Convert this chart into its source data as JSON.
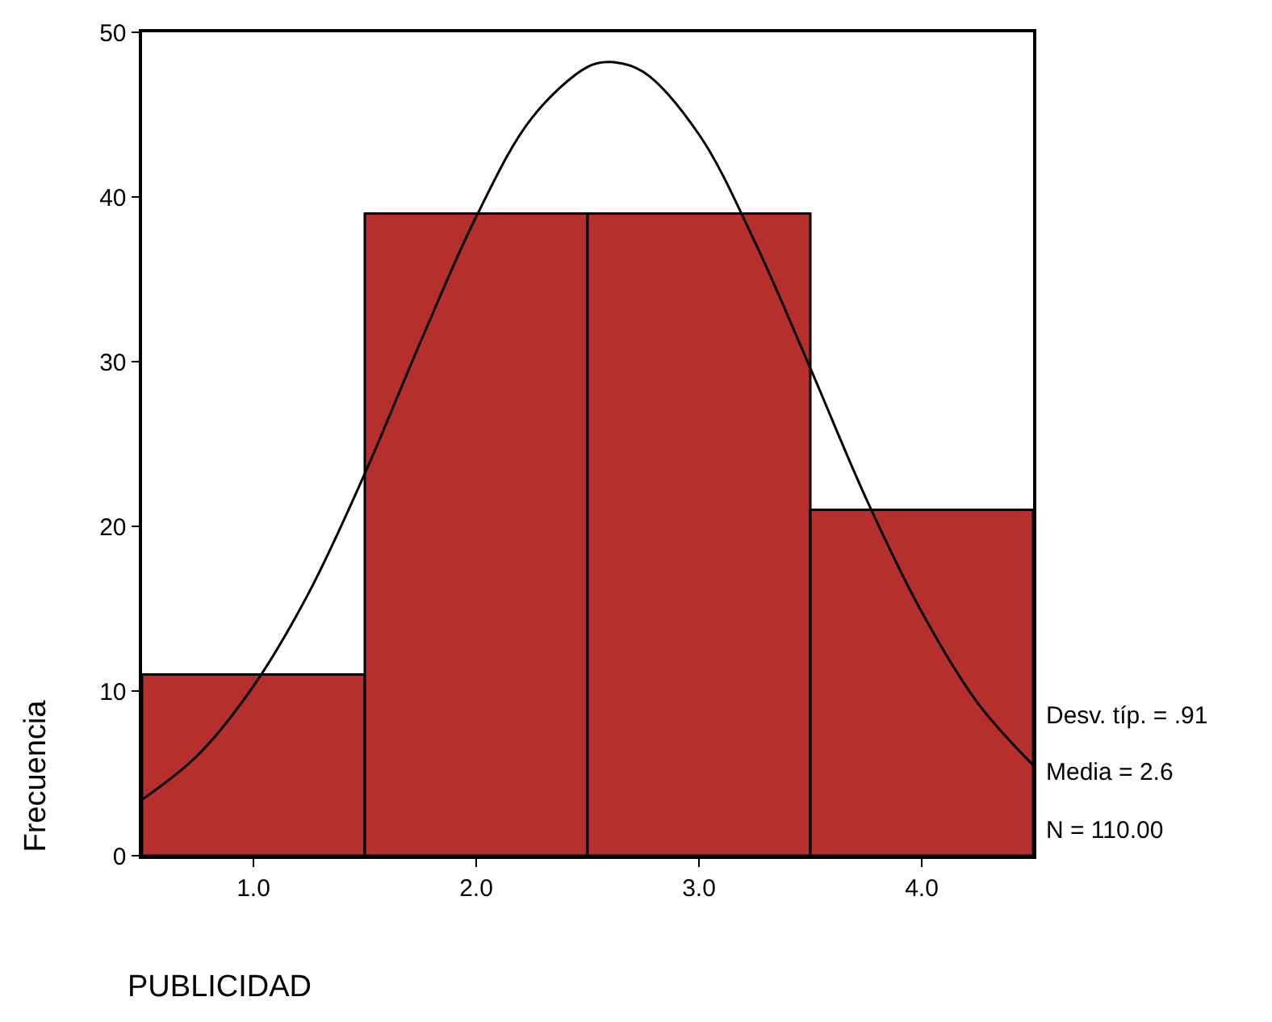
{
  "chart_data": {
    "type": "histogram",
    "xlabel": "PUBLICIDAD",
    "ylabel": "Frecuencia",
    "xlim": [
      0.5,
      4.5
    ],
    "xticks": [
      {
        "value": 1,
        "label": "1.0"
      },
      {
        "value": 2,
        "label": "2.0"
      },
      {
        "value": 3,
        "label": "3.0"
      },
      {
        "value": 4,
        "label": "4.0"
      }
    ],
    "ylim": [
      0,
      50
    ],
    "yticks": [
      0,
      10,
      20,
      30,
      40,
      50
    ],
    "marker": "none",
    "line_style": "solid",
    "series": [
      {
        "color": "#b5302c",
        "bins": [
          0.5,
          1.5,
          2.5,
          3.5,
          4.5
        ],
        "values": [
          11,
          39,
          39,
          21
        ]
      },
      {
        "type": "line",
        "color": "#000000",
        "x": [
          0.5,
          0.75,
          1.0,
          1.25,
          1.5,
          1.75,
          2.0,
          2.25,
          2.5,
          2.6,
          2.75,
          3.0,
          3.25,
          3.5,
          3.75,
          4.0,
          4.25,
          4.5
        ],
        "values": [
          3.4,
          6.1,
          10.3,
          16.0,
          23.2,
          31.2,
          38.8,
          44.8,
          47.9,
          48.2,
          47.6,
          43.8,
          37.3,
          29.6,
          21.7,
          14.8,
          9.3,
          5.5
        ]
      }
    ],
    "annotations": [
      "Desv. típ. = .91",
      "Media = 2.6",
      "N = 110.00"
    ]
  }
}
